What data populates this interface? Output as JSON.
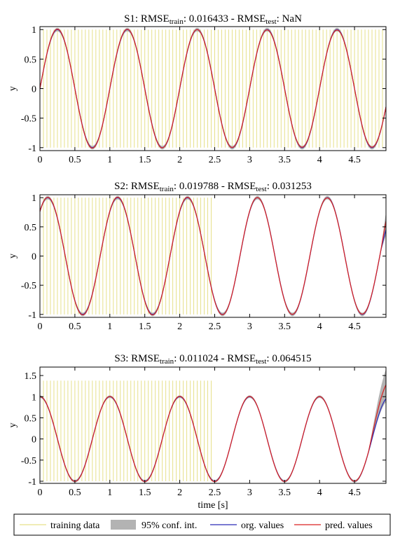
{
  "chart_data": [
    {
      "type": "line",
      "title_parts": [
        "S1: RMSE",
        "train",
        ": 0.016433 - RMSE",
        "test",
        ": NaN"
      ],
      "xlabel": "",
      "ylabel": "y",
      "xlim": [
        0,
        4.95
      ],
      "ylim": [
        -1.05,
        1.05
      ],
      "xticks": [
        0,
        0.5,
        1,
        1.5,
        2,
        2.5,
        3,
        3.5,
        4,
        4.5
      ],
      "xtick_labels": [
        "0",
        "0.5",
        "1",
        "1.5",
        "2",
        "2.5",
        "3",
        "3.5",
        "4",
        "4.5"
      ],
      "yticks": [
        1,
        0.5,
        0,
        -0.5,
        -1
      ],
      "ytick_labels": [
        "1",
        "0.5",
        "0",
        "-0.5",
        "-1"
      ],
      "signal": {
        "frequency": 1.0,
        "phase": 0.0,
        "function": "sin"
      },
      "training_data": {
        "x_start": 0.0,
        "x_end": 4.95,
        "spacing": 0.05,
        "y_range": [
          -1.0,
          1.0
        ]
      },
      "conf_int_halfwidth": 0.03,
      "extrapolation_start": null
    },
    {
      "type": "line",
      "title_parts": [
        "S2: RMSE",
        "train",
        ": 0.019788 - RMSE",
        "test",
        ": 0.031253"
      ],
      "xlabel": "",
      "ylabel": "y",
      "xlim": [
        0,
        4.95
      ],
      "ylim": [
        -1.05,
        1.05
      ],
      "xticks": [
        0,
        0.5,
        1,
        1.5,
        2,
        2.5,
        3,
        3.5,
        4,
        4.5
      ],
      "xtick_labels": [
        "0",
        "0.5",
        "1",
        "1.5",
        "2",
        "2.5",
        "3",
        "3.5",
        "4",
        "4.5"
      ],
      "yticks": [
        1,
        0.5,
        0,
        -0.5,
        -1
      ],
      "ytick_labels": [
        "1",
        "0.5",
        "0",
        "-0.5",
        "-1"
      ],
      "signal": {
        "frequency": 1.0,
        "phase": 0.87,
        "function": "sin"
      },
      "training_data": {
        "x_start": 0.0,
        "x_end": 2.45,
        "spacing": 0.05,
        "y_range": [
          -1.0,
          1.0
        ]
      },
      "conf_int_halfwidth": 0.03,
      "extrapolation_start": 4.88,
      "edge_end": {
        "org": 0.45,
        "pred": 0.6,
        "ci": [
          0.38,
          0.72
        ]
      }
    },
    {
      "type": "line",
      "title_parts": [
        "S3: RMSE",
        "train",
        ": 0.011024 - RMSE",
        "test",
        ": 0.064515"
      ],
      "xlabel": "time [s]",
      "ylabel": "y",
      "xlim": [
        0,
        4.95
      ],
      "ylim": [
        -1.05,
        1.7
      ],
      "xticks": [
        0,
        0.5,
        1,
        1.5,
        2,
        2.5,
        3,
        3.5,
        4,
        4.5
      ],
      "xtick_labels": [
        "0",
        "0.5",
        "1",
        "1.5",
        "2",
        "2.5",
        "3",
        "3.5",
        "4",
        "4.5"
      ],
      "yticks": [
        1.5,
        1,
        0.5,
        0,
        -0.5,
        -1
      ],
      "ytick_labels": [
        "1.5",
        "1",
        "0.5",
        "0",
        "-0.5",
        "-1"
      ],
      "signal": {
        "frequency": 1.0,
        "phase": 1.5708,
        "function": "sin"
      },
      "training_data": {
        "x_start": 0.0,
        "x_end": 2.45,
        "spacing": 0.05,
        "y_range": [
          -1.0,
          1.38
        ]
      },
      "conf_int_halfwidth": 0.03,
      "extrapolation_start": 4.7,
      "edge_end": {
        "org": 0.95,
        "pred": 1.28,
        "ci": [
          0.9,
          1.62
        ]
      }
    }
  ],
  "legend": {
    "placement": "bottom",
    "items": [
      {
        "label": "training data",
        "kind": "line",
        "color": "#e6e08a"
      },
      {
        "label": "95% conf. int.",
        "kind": "patch",
        "color": "#b3b3b3"
      },
      {
        "label": "org. values",
        "kind": "line",
        "color": "#2b2bb8"
      },
      {
        "label": "pred. values",
        "kind": "line",
        "color": "#d92020"
      }
    ]
  },
  "colors": {
    "training": "#e6e08a",
    "ci": "#b3b3b3",
    "org": "#2b2bb8",
    "pred": "#d92020",
    "axis": "#000000"
  }
}
